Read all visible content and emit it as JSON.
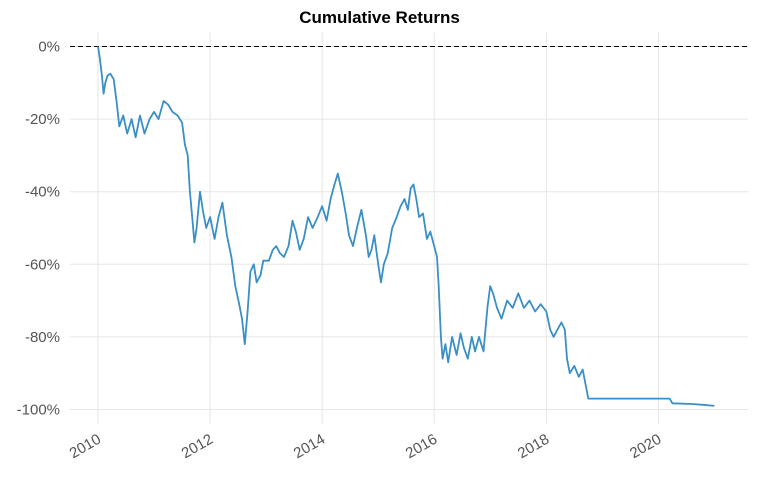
{
  "chart_data": {
    "type": "line",
    "title": "Cumulative Returns",
    "xlabel": "",
    "ylabel": "",
    "x_ticks": [
      "2010",
      "2012",
      "2014",
      "2016",
      "2018",
      "2020"
    ],
    "y_ticks": [
      "0%",
      "-20%",
      "-40%",
      "-60%",
      "-80%",
      "-100%"
    ],
    "xlim": [
      2009.5,
      2021.6
    ],
    "ylim": [
      -104,
      4
    ],
    "grid": true,
    "reference_line": {
      "y": 0,
      "style": "dashed",
      "color": "#000000"
    },
    "series": [
      {
        "color": "#3a8fc6",
        "points": [
          [
            2010.0,
            0
          ],
          [
            2010.03,
            -3
          ],
          [
            2010.07,
            -8
          ],
          [
            2010.1,
            -13
          ],
          [
            2010.13,
            -10
          ],
          [
            2010.17,
            -8
          ],
          [
            2010.22,
            -7.5
          ],
          [
            2010.28,
            -9
          ],
          [
            2010.33,
            -15
          ],
          [
            2010.38,
            -22
          ],
          [
            2010.45,
            -19
          ],
          [
            2010.52,
            -24
          ],
          [
            2010.6,
            -20
          ],
          [
            2010.67,
            -25
          ],
          [
            2010.75,
            -19
          ],
          [
            2010.83,
            -24
          ],
          [
            2010.92,
            -20
          ],
          [
            2011.0,
            -18
          ],
          [
            2011.08,
            -20
          ],
          [
            2011.17,
            -15
          ],
          [
            2011.25,
            -16
          ],
          [
            2011.33,
            -18
          ],
          [
            2011.42,
            -19
          ],
          [
            2011.5,
            -21
          ],
          [
            2011.55,
            -27
          ],
          [
            2011.6,
            -30
          ],
          [
            2011.64,
            -40
          ],
          [
            2011.68,
            -47
          ],
          [
            2011.72,
            -54
          ],
          [
            2011.76,
            -50
          ],
          [
            2011.82,
            -40
          ],
          [
            2011.87,
            -45
          ],
          [
            2011.93,
            -50
          ],
          [
            2012.0,
            -47
          ],
          [
            2012.08,
            -53
          ],
          [
            2012.15,
            -47
          ],
          [
            2012.22,
            -43
          ],
          [
            2012.3,
            -52
          ],
          [
            2012.38,
            -58
          ],
          [
            2012.45,
            -66
          ],
          [
            2012.52,
            -71
          ],
          [
            2012.57,
            -75
          ],
          [
            2012.62,
            -82
          ],
          [
            2012.67,
            -73
          ],
          [
            2012.72,
            -62
          ],
          [
            2012.78,
            -60
          ],
          [
            2012.83,
            -65
          ],
          [
            2012.9,
            -63
          ],
          [
            2012.95,
            -59
          ],
          [
            2013.05,
            -59
          ],
          [
            2013.12,
            -56
          ],
          [
            2013.18,
            -55
          ],
          [
            2013.25,
            -57
          ],
          [
            2013.32,
            -58
          ],
          [
            2013.4,
            -55
          ],
          [
            2013.47,
            -48
          ],
          [
            2013.53,
            -51
          ],
          [
            2013.6,
            -56
          ],
          [
            2013.67,
            -53
          ],
          [
            2013.75,
            -47
          ],
          [
            2013.83,
            -50
          ],
          [
            2013.92,
            -47
          ],
          [
            2014.0,
            -44
          ],
          [
            2014.08,
            -48
          ],
          [
            2014.15,
            -42
          ],
          [
            2014.22,
            -38
          ],
          [
            2014.28,
            -35
          ],
          [
            2014.35,
            -40
          ],
          [
            2014.42,
            -46
          ],
          [
            2014.48,
            -52
          ],
          [
            2014.55,
            -55
          ],
          [
            2014.62,
            -50
          ],
          [
            2014.7,
            -45
          ],
          [
            2014.78,
            -52
          ],
          [
            2014.83,
            -58
          ],
          [
            2014.88,
            -56
          ],
          [
            2014.93,
            -52
          ],
          [
            2015.0,
            -60
          ],
          [
            2015.05,
            -65
          ],
          [
            2015.1,
            -60
          ],
          [
            2015.17,
            -57
          ],
          [
            2015.25,
            -50
          ],
          [
            2015.33,
            -47
          ],
          [
            2015.4,
            -44
          ],
          [
            2015.47,
            -42
          ],
          [
            2015.53,
            -45
          ],
          [
            2015.58,
            -39
          ],
          [
            2015.63,
            -38
          ],
          [
            2015.68,
            -42
          ],
          [
            2015.73,
            -47
          ],
          [
            2015.8,
            -46
          ],
          [
            2015.87,
            -53
          ],
          [
            2015.93,
            -51
          ],
          [
            2016.0,
            -55
          ],
          [
            2016.05,
            -58
          ],
          [
            2016.08,
            -66
          ],
          [
            2016.12,
            -80
          ],
          [
            2016.15,
            -86
          ],
          [
            2016.2,
            -82
          ],
          [
            2016.25,
            -87
          ],
          [
            2016.32,
            -80
          ],
          [
            2016.4,
            -85
          ],
          [
            2016.47,
            -79
          ],
          [
            2016.53,
            -83
          ],
          [
            2016.6,
            -86
          ],
          [
            2016.67,
            -80
          ],
          [
            2016.73,
            -84
          ],
          [
            2016.8,
            -80
          ],
          [
            2016.88,
            -84
          ],
          [
            2016.95,
            -72
          ],
          [
            2017.0,
            -66
          ],
          [
            2017.05,
            -68
          ],
          [
            2017.12,
            -72
          ],
          [
            2017.2,
            -75
          ],
          [
            2017.3,
            -70
          ],
          [
            2017.4,
            -72
          ],
          [
            2017.5,
            -68
          ],
          [
            2017.6,
            -72
          ],
          [
            2017.7,
            -70
          ],
          [
            2017.8,
            -73
          ],
          [
            2017.9,
            -71
          ],
          [
            2018.0,
            -73
          ],
          [
            2018.07,
            -78
          ],
          [
            2018.13,
            -80
          ],
          [
            2018.2,
            -78
          ],
          [
            2018.27,
            -76
          ],
          [
            2018.33,
            -78
          ],
          [
            2018.37,
            -86
          ],
          [
            2018.42,
            -90
          ],
          [
            2018.5,
            -88
          ],
          [
            2018.58,
            -91
          ],
          [
            2018.65,
            -89
          ],
          [
            2018.7,
            -93
          ],
          [
            2018.75,
            -97
          ],
          [
            2019.0,
            -97
          ],
          [
            2019.5,
            -97
          ],
          [
            2020.0,
            -97
          ],
          [
            2020.2,
            -97
          ],
          [
            2020.25,
            -98.3
          ],
          [
            2020.6,
            -98.5
          ],
          [
            2020.8,
            -98.7
          ],
          [
            2021.0,
            -99
          ]
        ]
      }
    ]
  }
}
